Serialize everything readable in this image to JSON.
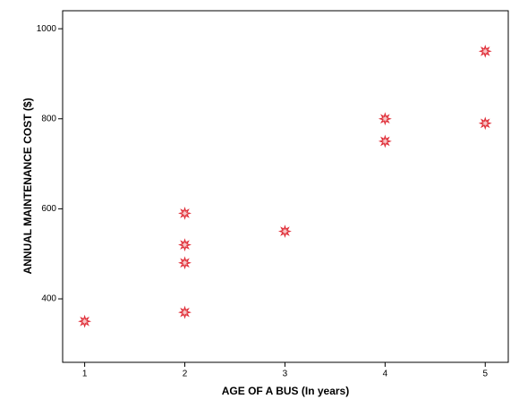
{
  "chart_data": {
    "type": "scatter",
    "x_label": "AGE OF A BUS (In years)",
    "y_label": "ANNUAL MAINTENANCE COST ($)",
    "series": [
      {
        "color": "#e0303a",
        "x": [
          1,
          2,
          2,
          2,
          2,
          3,
          4,
          4,
          5,
          5
        ],
        "values": [
          350,
          370,
          480,
          520,
          590,
          550,
          750,
          800,
          790,
          950
        ]
      }
    ],
    "xlim": [
      0.78,
      5.23
    ],
    "xticks": [
      1,
      2,
      3,
      4,
      5
    ],
    "ylim": [
      259,
      1040
    ],
    "yticks": [
      400,
      600,
      800,
      1000
    ]
  }
}
